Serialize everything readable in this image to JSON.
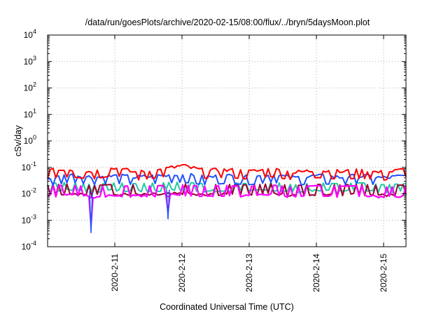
{
  "chart_data": {
    "type": "line",
    "title": "/data/run/goesPlots/archive/2020-02-15/08:00/flux/../bryn/5daysMoon.plot",
    "xlabel": "Coordinated Universal Time (UTC)",
    "ylabel": "cSv/day",
    "y_scale": "log",
    "ylim": [
      0.0001,
      10000
    ],
    "xlim": [
      "2020-02-10T00:00",
      "2020-02-15T08:00"
    ],
    "grid": true,
    "legend": "none",
    "y_ticks": [
      {
        "base": "10",
        "exp": "-4"
      },
      {
        "base": "10",
        "exp": "-3"
      },
      {
        "base": "10",
        "exp": "-2"
      },
      {
        "base": "10",
        "exp": "-1"
      },
      {
        "base": "10",
        "exp": "0"
      },
      {
        "base": "10",
        "exp": "1"
      },
      {
        "base": "10",
        "exp": "2"
      },
      {
        "base": "10",
        "exp": "3"
      },
      {
        "base": "10",
        "exp": "4"
      }
    ],
    "x_ticks": [
      "2020-2-11",
      "2020-2-12",
      "2020-2-13",
      "2020-2-14",
      "2020-2-15"
    ],
    "series": [
      {
        "color": "#ff0000",
        "x": [
          "2020-02-10T00:00",
          "2020-02-10T08:00",
          "2020-02-10T16:00",
          "2020-02-11T00:00",
          "2020-02-11T08:00",
          "2020-02-11T16:00",
          "2020-02-12T00:00",
          "2020-02-12T08:00",
          "2020-02-12T16:00",
          "2020-02-13T00:00",
          "2020-02-13T08:00",
          "2020-02-13T16:00",
          "2020-02-14T00:00",
          "2020-02-14T08:00",
          "2020-02-14T16:00",
          "2020-02-15T00:00",
          "2020-02-15T08:00"
        ],
        "values": [
          0.07,
          0.08,
          0.065,
          0.09,
          0.06,
          0.075,
          0.11,
          0.07,
          0.075,
          0.065,
          0.08,
          0.06,
          0.075,
          0.065,
          0.07,
          0.06,
          0.08
        ]
      },
      {
        "color": "#1e50ff",
        "x": [
          "2020-02-10T00:00",
          "2020-02-10T08:00",
          "2020-02-10T16:00",
          "2020-02-11T00:00",
          "2020-02-11T08:00",
          "2020-02-11T16:00",
          "2020-02-12T00:00",
          "2020-02-12T08:00",
          "2020-02-12T16:00",
          "2020-02-13T00:00",
          "2020-02-13T08:00",
          "2020-02-13T16:00",
          "2020-02-14T00:00",
          "2020-02-14T08:00",
          "2020-02-14T16:00",
          "2020-02-15T00:00",
          "2020-02-15T08:00"
        ],
        "values": [
          0.035,
          0.05,
          0.04,
          0.045,
          0.04,
          0.045,
          0.05,
          0.04,
          0.045,
          0.04,
          0.05,
          0.038,
          0.045,
          0.04,
          0.045,
          0.038,
          0.045
        ]
      },
      {
        "color": "#22c8a0",
        "x": [
          "2020-02-10T00:00",
          "2020-02-10T08:00",
          "2020-02-10T16:00",
          "2020-02-11T00:00",
          "2020-02-11T08:00",
          "2020-02-11T16:00",
          "2020-02-12T00:00",
          "2020-02-12T08:00",
          "2020-02-12T16:00",
          "2020-02-13T00:00",
          "2020-02-13T08:00",
          "2020-02-13T16:00",
          "2020-02-14T00:00",
          "2020-02-14T08:00",
          "2020-02-14T16:00",
          "2020-02-15T00:00",
          "2020-02-15T08:00"
        ],
        "values": [
          0.012,
          0.014,
          0.011,
          0.013,
          0.012,
          0.013,
          0.014,
          0.012,
          0.013,
          0.012,
          0.014,
          0.011,
          0.013,
          0.012,
          0.013,
          0.011,
          0.012
        ]
      },
      {
        "color": "#9a0030",
        "x": [
          "2020-02-10T00:00",
          "2020-02-10T08:00",
          "2020-02-10T16:00",
          "2020-02-11T00:00",
          "2020-02-11T08:00",
          "2020-02-11T16:00",
          "2020-02-12T00:00",
          "2020-02-12T08:00",
          "2020-02-12T16:00",
          "2020-02-13T00:00",
          "2020-02-13T08:00",
          "2020-02-13T16:00",
          "2020-02-14T00:00",
          "2020-02-14T08:00",
          "2020-02-14T16:00",
          "2020-02-15T00:00",
          "2020-02-15T08:00"
        ],
        "values": [
          0.009,
          0.01,
          0.0085,
          0.0095,
          0.009,
          0.0095,
          0.01,
          0.009,
          0.0095,
          0.009,
          0.01,
          0.0085,
          0.0095,
          0.009,
          0.0095,
          0.0085,
          0.009
        ]
      },
      {
        "color": "#ff00ff",
        "x": [
          "2020-02-10T00:00",
          "2020-02-10T08:00",
          "2020-02-10T16:00",
          "2020-02-11T00:00",
          "2020-02-11T08:00",
          "2020-02-11T16:00",
          "2020-02-12T00:00",
          "2020-02-12T08:00",
          "2020-02-12T16:00",
          "2020-02-13T00:00",
          "2020-02-13T08:00",
          "2020-02-13T16:00",
          "2020-02-14T00:00",
          "2020-02-14T08:00",
          "2020-02-14T16:00",
          "2020-02-15T00:00",
          "2020-02-15T08:00"
        ],
        "values": [
          0.008,
          0.009,
          0.0075,
          0.0085,
          0.008,
          0.0085,
          0.009,
          0.008,
          0.0085,
          0.0078,
          0.009,
          0.0075,
          0.0085,
          0.008,
          0.0085,
          0.0075,
          0.008
        ]
      }
    ],
    "dips": [
      {
        "x": "2020-02-10T15:30",
        "value": 0.0006
      },
      {
        "x": "2020-02-11T19:00",
        "value": 0.002
      }
    ]
  }
}
